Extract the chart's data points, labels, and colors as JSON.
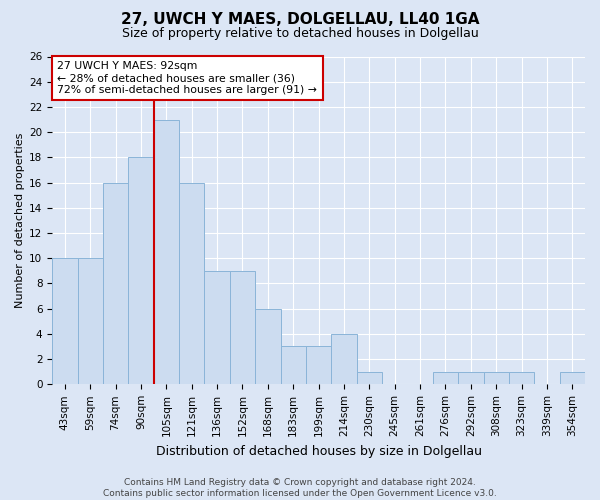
{
  "title": "27, UWCH Y MAES, DOLGELLAU, LL40 1GA",
  "subtitle": "Size of property relative to detached houses in Dolgellau",
  "xlabel": "Distribution of detached houses by size in Dolgellau",
  "ylabel": "Number of detached properties",
  "bin_labels": [
    "43sqm",
    "59sqm",
    "74sqm",
    "90sqm",
    "105sqm",
    "121sqm",
    "136sqm",
    "152sqm",
    "168sqm",
    "183sqm",
    "199sqm",
    "214sqm",
    "230sqm",
    "245sqm",
    "261sqm",
    "276sqm",
    "292sqm",
    "308sqm",
    "323sqm",
    "339sqm",
    "354sqm"
  ],
  "values": [
    10,
    10,
    16,
    18,
    21,
    16,
    9,
    9,
    6,
    3,
    3,
    4,
    1,
    0,
    0,
    1,
    1,
    1,
    1,
    0,
    1
  ],
  "bar_color": "#ccdcf0",
  "bar_edge_color": "#8ab4d8",
  "vline_color": "#cc0000",
  "annotation_text": "27 UWCH Y MAES: 92sqm\n← 28% of detached houses are smaller (36)\n72% of semi-detached houses are larger (91) →",
  "annotation_box_color": "#ffffff",
  "annotation_box_edge": "#cc0000",
  "ylim": [
    0,
    26
  ],
  "yticks": [
    0,
    2,
    4,
    6,
    8,
    10,
    12,
    14,
    16,
    18,
    20,
    22,
    24,
    26
  ],
  "footer": "Contains HM Land Registry data © Crown copyright and database right 2024.\nContains public sector information licensed under the Open Government Licence v3.0.",
  "background_color": "#dce6f5",
  "grid_color": "#ffffff",
  "title_fontsize": 11,
  "subtitle_fontsize": 9,
  "ylabel_fontsize": 8,
  "xlabel_fontsize": 9,
  "tick_fontsize": 7.5,
  "footer_fontsize": 6.5
}
